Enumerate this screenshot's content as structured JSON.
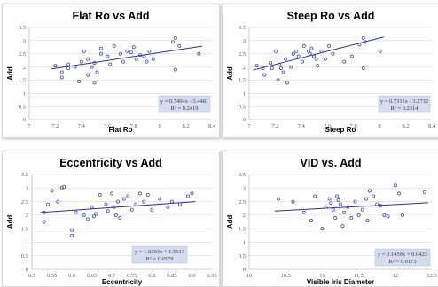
{
  "chart_data": [
    {
      "type": "scatter",
      "title": "Flat Ro vs Add",
      "xlabel": "Flat Ro",
      "ylabel": "Add",
      "xlim": [
        7,
        8.4
      ],
      "ylim": [
        0,
        3.5
      ],
      "x_ticks": [
        "7",
        "7.2",
        "7.4",
        "7.6",
        "7.8",
        "8",
        "8.2",
        "8.4"
      ],
      "y_ticks": [
        "0",
        "0.5",
        "1",
        "1.5",
        "2",
        "2.5",
        "3",
        "3.5"
      ],
      "trendline": {
        "slope": 0.7494,
        "intercept": -3.4481
      },
      "equation": "y = 0.7494x - 3.4481",
      "r2": "R² = 0.2419",
      "points": [
        [
          7.2,
          2.05
        ],
        [
          7.25,
          1.8
        ],
        [
          7.25,
          1.6
        ],
        [
          7.3,
          1.95
        ],
        [
          7.3,
          2.1
        ],
        [
          7.35,
          2.0
        ],
        [
          7.38,
          1.45
        ],
        [
          7.4,
          2.2
        ],
        [
          7.42,
          2.6
        ],
        [
          7.45,
          1.7
        ],
        [
          7.45,
          2.3
        ],
        [
          7.48,
          2.0
        ],
        [
          7.5,
          2.15
        ],
        [
          7.5,
          1.4
        ],
        [
          7.52,
          1.8
        ],
        [
          7.55,
          2.5
        ],
        [
          7.55,
          2.7
        ],
        [
          7.6,
          2.4
        ],
        [
          7.62,
          2.1
        ],
        [
          7.65,
          2.8
        ],
        [
          7.7,
          2.5
        ],
        [
          7.72,
          2.2
        ],
        [
          7.75,
          2.6
        ],
        [
          7.78,
          2.55
        ],
        [
          7.8,
          2.75
        ],
        [
          7.82,
          2.3
        ],
        [
          7.85,
          2.45
        ],
        [
          7.88,
          2.4
        ],
        [
          7.9,
          2.2
        ],
        [
          7.92,
          2.6
        ],
        [
          7.95,
          2.3
        ],
        [
          8.1,
          2.95
        ],
        [
          8.12,
          3.1
        ],
        [
          8.12,
          1.9
        ],
        [
          8.15,
          2.8
        ],
        [
          8.3,
          2.5
        ]
      ]
    },
    {
      "type": "scatter",
      "title": "Steep Ro vs Add",
      "xlabel": "Steep Ro",
      "ylabel": "Add",
      "xlim": [
        7,
        9.4
      ],
      "ylim": [
        0,
        3.5
      ],
      "x_ticks": [
        "7",
        "7.2",
        "7.4",
        "7.6",
        "7.8",
        "8",
        "8.2",
        "8.4"
      ],
      "y_ticks": [
        "0",
        "0.5",
        "1",
        "1.5",
        "2",
        "2.5",
        "3",
        "3.5"
      ],
      "trendline": {
        "slope": 0.7311,
        "intercept": -3.2732
      },
      "equation": "y = 0.7311x - 3.2732",
      "r2": "R² = 0.2314",
      "points": [
        [
          7.1,
          2.05
        ],
        [
          7.18,
          1.95
        ],
        [
          7.2,
          1.7
        ],
        [
          7.28,
          2.15
        ],
        [
          7.3,
          1.95
        ],
        [
          7.35,
          2.6
        ],
        [
          7.38,
          1.5
        ],
        [
          7.4,
          2.1
        ],
        [
          7.42,
          1.95
        ],
        [
          7.45,
          1.8
        ],
        [
          7.48,
          2.3
        ],
        [
          7.5,
          1.4
        ],
        [
          7.55,
          2.0
        ],
        [
          7.58,
          2.5
        ],
        [
          7.62,
          2.6
        ],
        [
          7.65,
          2.4
        ],
        [
          7.7,
          2.2
        ],
        [
          7.72,
          2.8
        ],
        [
          7.78,
          2.6
        ],
        [
          7.8,
          2.5
        ],
        [
          7.82,
          2.7
        ],
        [
          7.85,
          2.4
        ],
        [
          7.88,
          2.3
        ],
        [
          7.9,
          2.05
        ],
        [
          7.95,
          2.6
        ],
        [
          8.0,
          2.3
        ],
        [
          8.05,
          2.8
        ],
        [
          8.1,
          2.5
        ],
        [
          8.25,
          2.2
        ],
        [
          8.35,
          2.4
        ],
        [
          8.45,
          2.85
        ],
        [
          8.5,
          3.1
        ],
        [
          8.5,
          1.95
        ],
        [
          8.52,
          2.95
        ],
        [
          8.72,
          2.6
        ]
      ]
    },
    {
      "type": "scatter",
      "title": "Eccentricity vs Add",
      "xlabel": "Eccentricity",
      "ylabel": "Add",
      "xlim": [
        0.5,
        0.95
      ],
      "ylim": [
        0,
        3.5
      ],
      "x_ticks": [
        "0.5",
        "0.55",
        "0.6",
        "0.65",
        "0.7",
        "0.75",
        "0.8",
        "0.85",
        "0.9",
        "0.95"
      ],
      "y_ticks": [
        "0",
        "0.5",
        "1",
        "1.5",
        "2",
        "2.5",
        "3",
        "3.5"
      ],
      "trendline": {
        "slope": 1.0293,
        "intercept": 1.5613
      },
      "equation": "y = 1.0293x + 1.5613",
      "r2": "R² = 0.0579",
      "points": [
        [
          0.53,
          1.75
        ],
        [
          0.53,
          2.1
        ],
        [
          0.54,
          2.4
        ],
        [
          0.55,
          2.9
        ],
        [
          0.565,
          2.5
        ],
        [
          0.575,
          3.0
        ],
        [
          0.58,
          3.05
        ],
        [
          0.6,
          1.45
        ],
        [
          0.6,
          1.25
        ],
        [
          0.61,
          2.1
        ],
        [
          0.63,
          2.0
        ],
        [
          0.64,
          1.85
        ],
        [
          0.65,
          2.3
        ],
        [
          0.655,
          1.95
        ],
        [
          0.66,
          2.05
        ],
        [
          0.67,
          2.75
        ],
        [
          0.685,
          2.4
        ],
        [
          0.69,
          2.15
        ],
        [
          0.7,
          2.8
        ],
        [
          0.705,
          2.3
        ],
        [
          0.71,
          2.0
        ],
        [
          0.715,
          2.5
        ],
        [
          0.72,
          1.9
        ],
        [
          0.73,
          2.6
        ],
        [
          0.74,
          2.7
        ],
        [
          0.75,
          2.2
        ],
        [
          0.76,
          2.4
        ],
        [
          0.77,
          2.8
        ],
        [
          0.78,
          2.5
        ],
        [
          0.79,
          2.75
        ],
        [
          0.8,
          2.2
        ],
        [
          0.82,
          2.6
        ],
        [
          0.84,
          2.3
        ],
        [
          0.85,
          2.5
        ],
        [
          0.87,
          2.4
        ],
        [
          0.89,
          2.7
        ],
        [
          0.9,
          2.8
        ]
      ]
    },
    {
      "type": "scatter",
      "title": "VID vs. Add",
      "xlabel": "Visible Iris Diameter",
      "ylabel": "Add",
      "xlim": [
        10,
        12.5
      ],
      "ylim": [
        0,
        3.5
      ],
      "x_ticks": [
        "10",
        "10.5",
        "11",
        "11.5",
        "12",
        "12.5"
      ],
      "y_ticks": [
        "0",
        "0.5",
        "1",
        "1.5",
        "2",
        "2.5",
        "3",
        "3.5"
      ],
      "trendline": {
        "slope": 0.1459,
        "intercept": 0.6423
      },
      "equation": "y = 0.1459x + 0.6423",
      "r2": "R² = 0.0173",
      "points": [
        [
          10.4,
          2.6
        ],
        [
          10.6,
          2.5
        ],
        [
          10.75,
          2.1
        ],
        [
          10.85,
          1.8
        ],
        [
          10.9,
          2.7
        ],
        [
          11.0,
          1.5
        ],
        [
          11.05,
          2.3
        ],
        [
          11.1,
          2.6
        ],
        [
          11.12,
          2.45
        ],
        [
          11.15,
          2.2
        ],
        [
          11.18,
          1.9
        ],
        [
          11.2,
          2.7
        ],
        [
          11.22,
          2.55
        ],
        [
          11.25,
          2.4
        ],
        [
          11.28,
          1.6
        ],
        [
          11.3,
          2.1
        ],
        [
          11.35,
          2.3
        ],
        [
          11.4,
          1.9
        ],
        [
          11.45,
          2.5
        ],
        [
          11.5,
          2.0
        ],
        [
          11.55,
          2.2
        ],
        [
          11.6,
          2.6
        ],
        [
          11.62,
          1.8
        ],
        [
          11.65,
          2.9
        ],
        [
          11.7,
          2.7
        ],
        [
          11.75,
          2.4
        ],
        [
          11.8,
          2.35
        ],
        [
          11.85,
          2.0
        ],
        [
          11.9,
          1.95
        ],
        [
          12.0,
          3.1
        ],
        [
          12.05,
          2.8
        ],
        [
          12.1,
          2.0
        ],
        [
          12.4,
          2.85
        ]
      ]
    }
  ]
}
